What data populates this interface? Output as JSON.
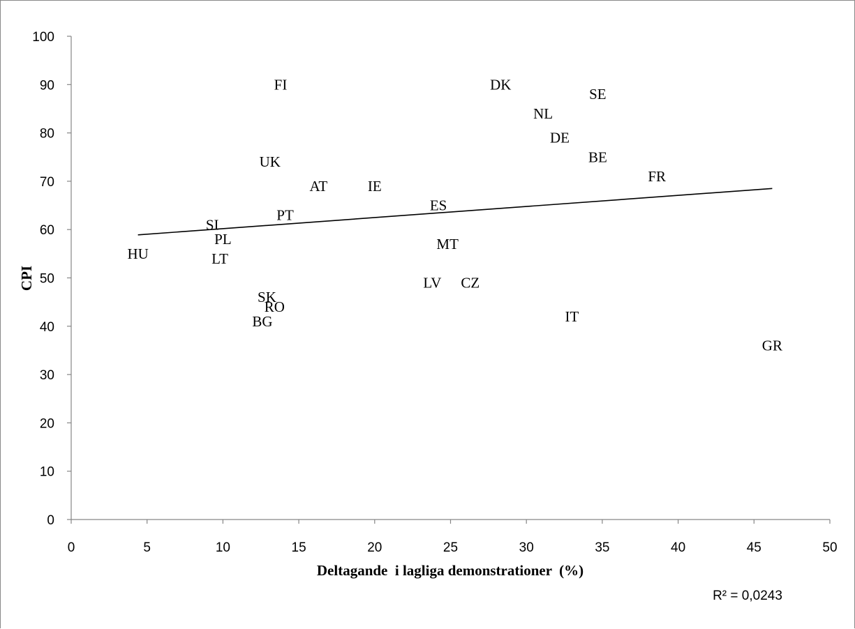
{
  "chart_data": {
    "type": "scatter",
    "xlabel": "Deltagande  i lagliga demonstrationer  (%)",
    "ylabel": "CPI",
    "xlim": [
      0,
      50
    ],
    "ylim": [
      0,
      100
    ],
    "x_ticks": [
      "0",
      "5",
      "10",
      "15",
      "20",
      "25",
      "30",
      "35",
      "40",
      "45",
      "50"
    ],
    "y_ticks": [
      "0",
      "10",
      "20",
      "30",
      "40",
      "50",
      "60",
      "70",
      "80",
      "90",
      "100"
    ],
    "grid": false,
    "legend": "none",
    "points": [
      {
        "label": "FI",
        "x": 13.8,
        "y": 90
      },
      {
        "label": "DK",
        "x": 28.3,
        "y": 90
      },
      {
        "label": "SE",
        "x": 34.7,
        "y": 88
      },
      {
        "label": "NL",
        "x": 31.1,
        "y": 84
      },
      {
        "label": "DE",
        "x": 32.2,
        "y": 79
      },
      {
        "label": "BE",
        "x": 34.7,
        "y": 75
      },
      {
        "label": "FR",
        "x": 38.6,
        "y": 71
      },
      {
        "label": "UK",
        "x": 13.1,
        "y": 74
      },
      {
        "label": "AT",
        "x": 16.3,
        "y": 69
      },
      {
        "label": "IE",
        "x": 20.0,
        "y": 69
      },
      {
        "label": "ES",
        "x": 24.2,
        "y": 65
      },
      {
        "label": "PT",
        "x": 14.1,
        "y": 63
      },
      {
        "label": "SI",
        "x": 9.3,
        "y": 61
      },
      {
        "label": "PL",
        "x": 10.0,
        "y": 58
      },
      {
        "label": "MT",
        "x": 24.8,
        "y": 57
      },
      {
        "label": "HU",
        "x": 4.4,
        "y": 55
      },
      {
        "label": "LT",
        "x": 9.8,
        "y": 54
      },
      {
        "label": "LV",
        "x": 23.8,
        "y": 49
      },
      {
        "label": "CZ",
        "x": 26.3,
        "y": 49
      },
      {
        "label": "SK",
        "x": 12.9,
        "y": 46
      },
      {
        "label": "RO",
        "x": 13.4,
        "y": 44
      },
      {
        "label": "BG",
        "x": 12.6,
        "y": 41
      },
      {
        "label": "IT",
        "x": 33.0,
        "y": 42
      },
      {
        "label": "GR",
        "x": 46.2,
        "y": 36
      }
    ],
    "trendline": {
      "x": [
        4.4,
        46.2
      ],
      "y": [
        58.9,
        68.5
      ],
      "type": "linear"
    },
    "r2_text": "R² = 0,0243"
  }
}
